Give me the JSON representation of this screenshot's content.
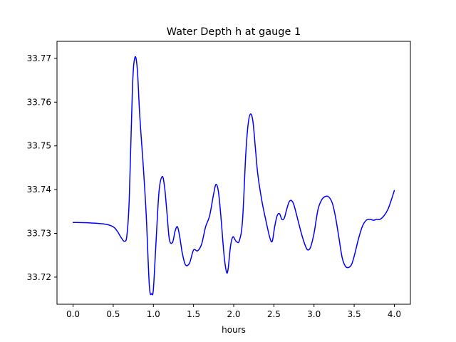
{
  "chart_data": {
    "type": "line",
    "title": "Water Depth h at gauge 1",
    "xlabel": "hours",
    "ylabel": "",
    "xlim": [
      -0.2,
      4.2
    ],
    "ylim": [
      33.7138,
      33.7739
    ],
    "xticks": [
      0.0,
      0.5,
      1.0,
      1.5,
      2.0,
      2.5,
      3.0,
      3.5,
      4.0
    ],
    "xtick_labels": [
      "0.0",
      "0.5",
      "1.0",
      "1.5",
      "2.0",
      "2.5",
      "3.0",
      "3.5",
      "4.0"
    ],
    "yticks": [
      33.72,
      33.73,
      33.74,
      33.75,
      33.76,
      33.77
    ],
    "ytick_labels": [
      "33.72",
      "33.73",
      "33.74",
      "33.75",
      "33.76",
      "33.77"
    ],
    "grid": false,
    "legend": "none",
    "series": [
      {
        "color": "#0000ff",
        "x": [
          0.0,
          0.2,
          0.4,
          0.5,
          0.55,
          0.6,
          0.64,
          0.67,
          0.7,
          0.74,
          0.77,
          0.8,
          0.83,
          0.87,
          0.91,
          0.95,
          0.98,
          1.0,
          1.03,
          1.07,
          1.11,
          1.14,
          1.17,
          1.2,
          1.24,
          1.27,
          1.3,
          1.33,
          1.36,
          1.4,
          1.45,
          1.5,
          1.55,
          1.6,
          1.65,
          1.7,
          1.75,
          1.78,
          1.81,
          1.84,
          1.88,
          1.91,
          1.93,
          1.96,
          1.99,
          2.03,
          2.07,
          2.11,
          2.15,
          2.18,
          2.21,
          2.24,
          2.27,
          2.3,
          2.35,
          2.4,
          2.45,
          2.48,
          2.51,
          2.54,
          2.57,
          2.6,
          2.63,
          2.66,
          2.69,
          2.72,
          2.75,
          2.8,
          2.85,
          2.9,
          2.93,
          2.96,
          3.0,
          3.05,
          3.1,
          3.15,
          3.19,
          3.23,
          3.27,
          3.31,
          3.35,
          3.39,
          3.43,
          3.47,
          3.51,
          3.55,
          3.6,
          3.65,
          3.7,
          3.74,
          3.78,
          3.82,
          3.87,
          3.92,
          3.96,
          4.0
        ],
        "y": [
          33.7325,
          33.7324,
          33.7321,
          33.7315,
          33.7305,
          33.729,
          33.7282,
          33.7295,
          33.738,
          33.7635,
          33.7702,
          33.7675,
          33.757,
          33.7465,
          33.7345,
          33.718,
          33.7162,
          33.7172,
          33.727,
          33.7395,
          33.743,
          33.7405,
          33.7345,
          33.7285,
          33.728,
          33.7305,
          33.7315,
          33.729,
          33.7255,
          33.7228,
          33.7232,
          33.7262,
          33.726,
          33.7275,
          33.7315,
          33.734,
          33.739,
          33.7412,
          33.7395,
          33.734,
          33.725,
          33.7212,
          33.7218,
          33.727,
          33.7292,
          33.7282,
          33.7283,
          33.733,
          33.748,
          33.755,
          33.7573,
          33.7555,
          33.7495,
          33.7435,
          33.7375,
          33.733,
          33.729,
          33.7282,
          33.7315,
          33.734,
          33.7345,
          33.7332,
          33.7335,
          33.7355,
          33.7372,
          33.7375,
          33.7365,
          33.733,
          33.7295,
          33.7268,
          33.7262,
          33.727,
          33.73,
          33.7355,
          33.7378,
          33.7385,
          33.7382,
          33.7368,
          33.7335,
          33.729,
          33.7245,
          33.7225,
          33.7222,
          33.723,
          33.7255,
          33.7285,
          33.7315,
          33.733,
          33.7332,
          33.733,
          33.7332,
          33.7332,
          33.734,
          33.7355,
          33.7375,
          33.7398
        ]
      }
    ]
  }
}
